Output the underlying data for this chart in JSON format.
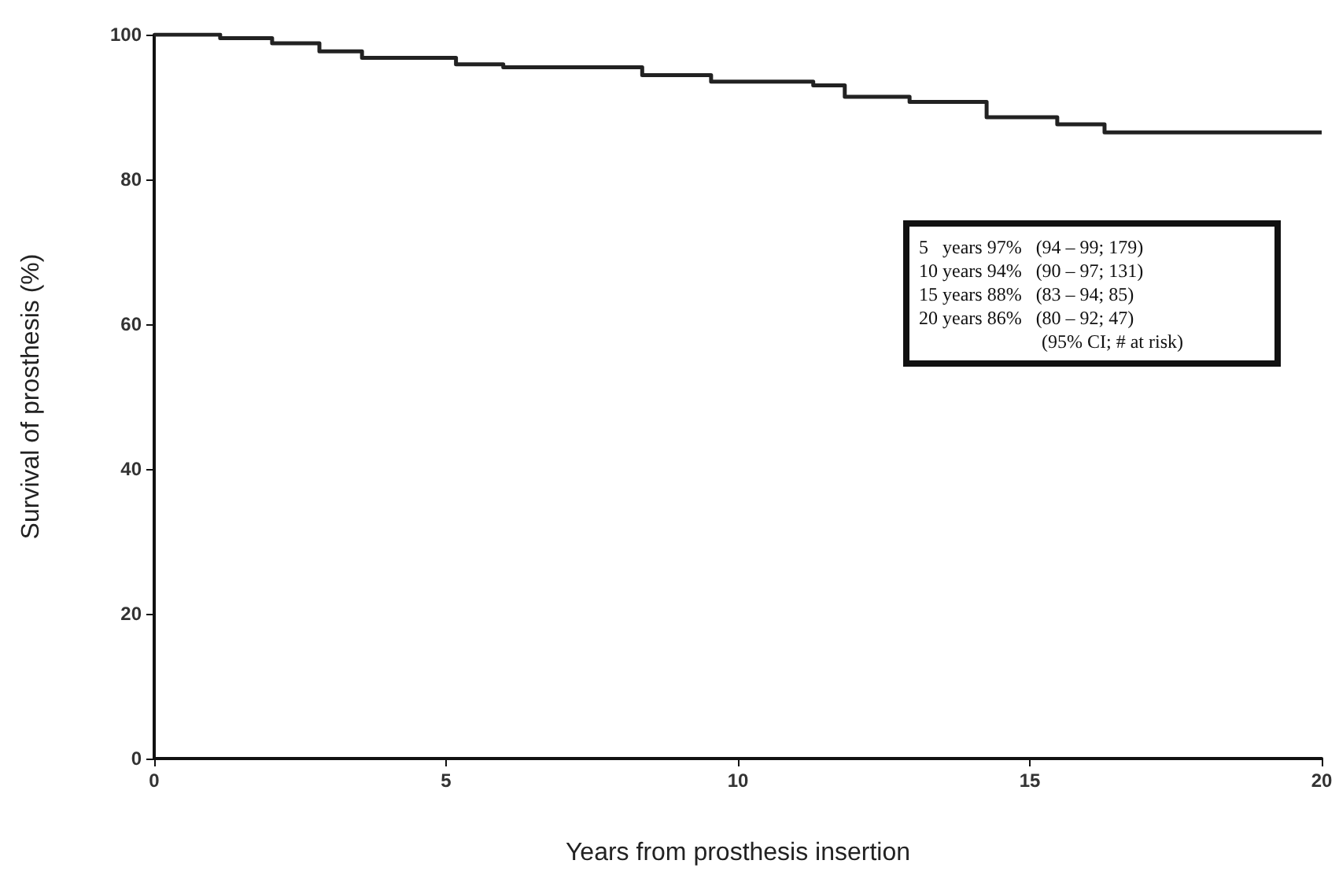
{
  "chart_data": {
    "type": "step",
    "xlabel": "Years from prosthesis insertion",
    "ylabel": "Survival of prosthesis (%)",
    "x": [
      0,
      1.13,
      2.02,
      2.83,
      3.56,
      5.17,
      5.98,
      8.36,
      9.54,
      11.29,
      11.83,
      12.94,
      14.26,
      15.47,
      16.28,
      20
    ],
    "series": [
      {
        "color": "#222222",
        "values": [
          100,
          99.5,
          98.8,
          97.7,
          96.8,
          95.9,
          95.5,
          94.4,
          93.5,
          93.0,
          91.4,
          90.7,
          88.6,
          87.6,
          86.5,
          86.5
        ]
      }
    ],
    "xlim": [
      0,
      20
    ],
    "xticks": [
      0,
      5,
      10,
      15,
      20
    ],
    "ylim": [
      0,
      100
    ],
    "yticks": [
      0,
      20,
      40,
      60,
      80,
      100
    ],
    "grid": false,
    "marker": "none",
    "line_style": "solid",
    "annotations": [
      "5   years 97%   (94 – 99; 179)",
      "10 years 94%   (90 – 97; 131)",
      "15 years 88%   (83 – 94; 85)",
      "20 years 86%   (80 – 92; 47)",
      "(95% CI; # at risk)"
    ]
  }
}
